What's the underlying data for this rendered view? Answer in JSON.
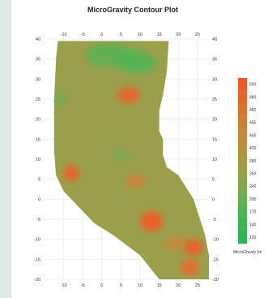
{
  "chart_data": {
    "type": "heatmap",
    "title": "MicroGravity Contour Plot",
    "xlim": [
      -15,
      28
    ],
    "ylim": [
      -20,
      40
    ],
    "x_ticks": [
      "-10",
      "-5",
      "0",
      "5",
      "10",
      "15",
      "20",
      "25"
    ],
    "y_ticks": [
      "40",
      "35",
      "30",
      "25",
      "20",
      "15",
      "10",
      "5",
      "0",
      "-5",
      "-10",
      "-15",
      "-20"
    ],
    "y_tick_values": [
      40,
      35,
      30,
      25,
      20,
      15,
      10,
      5,
      0,
      -5,
      -10,
      -15,
      -20
    ],
    "x_tick_values": [
      -10,
      -5,
      0,
      5,
      10,
      15,
      20,
      25
    ],
    "grid": true,
    "colorbar": {
      "title": "MicroGravity (m",
      "levels": [
        "500",
        "480",
        "460",
        "455",
        "445",
        "420",
        "280",
        "260",
        "240",
        "200",
        "170",
        "140",
        "120"
      ],
      "colors": [
        "#ec5a2a",
        "#e5672d",
        "#db7433",
        "#cf8038",
        "#c38a3c",
        "#b89140",
        "#a99846",
        "#96a14c",
        "#7fa84f",
        "#68ae52",
        "#4fb453",
        "#3cb653",
        "#2db453"
      ]
    },
    "base_value": 265,
    "hotspots": [
      {
        "x": 2,
        "y": 36,
        "value": 190,
        "rx": 6,
        "ry": 3
      },
      {
        "x": 8,
        "y": 34.5,
        "value": 175,
        "rx": 4,
        "ry": 3
      },
      {
        "x": 11,
        "y": 34,
        "value": 185,
        "rx": 3,
        "ry": 2.5
      },
      {
        "x": -11,
        "y": 25,
        "value": 215,
        "rx": 1.5,
        "ry": 1.5
      },
      {
        "x": 7,
        "y": 26,
        "value": 480,
        "rx": 3,
        "ry": 2
      },
      {
        "x": 5,
        "y": 11,
        "value": 235,
        "rx": 2.5,
        "ry": 1.5
      },
      {
        "x": -8,
        "y": 6.5,
        "value": 490,
        "rx": 2,
        "ry": 2
      },
      {
        "x": 9,
        "y": 4.5,
        "value": 450,
        "rx": 2.5,
        "ry": 1.5
      },
      {
        "x": 13,
        "y": -5.5,
        "value": 490,
        "rx": 3,
        "ry": 2.5
      },
      {
        "x": 19,
        "y": -11,
        "value": 440,
        "rx": 2.5,
        "ry": 2
      },
      {
        "x": 24,
        "y": -12,
        "value": 485,
        "rx": 2.5,
        "ry": 2
      },
      {
        "x": 23,
        "y": -17,
        "value": 470,
        "rx": 2.5,
        "ry": 2
      }
    ],
    "region_boundary": [
      [
        -11.5,
        39.5
      ],
      [
        17.5,
        39.5
      ],
      [
        17,
        32
      ],
      [
        16,
        26
      ],
      [
        15,
        22
      ],
      [
        15,
        17
      ],
      [
        16,
        15
      ],
      [
        16,
        11
      ],
      [
        17,
        8
      ],
      [
        20,
        6
      ],
      [
        22,
        3
      ],
      [
        24,
        0
      ],
      [
        25,
        -3
      ],
      [
        26,
        -6
      ],
      [
        27,
        -9
      ],
      [
        28,
        -14
      ],
      [
        28,
        -20
      ],
      [
        15,
        -20
      ],
      [
        10,
        -14
      ],
      [
        3,
        -9
      ],
      [
        -2,
        -6
      ],
      [
        -7,
        -1
      ],
      [
        -10,
        2
      ],
      [
        -12,
        6
      ],
      [
        -12.5,
        12
      ],
      [
        -12.5,
        25
      ],
      [
        -12,
        35
      ]
    ]
  }
}
